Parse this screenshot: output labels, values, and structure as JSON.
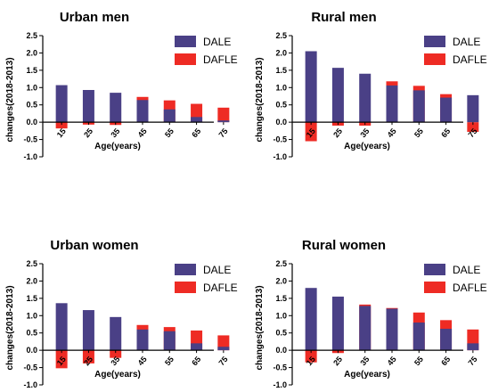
{
  "colors": {
    "dale": "#4a4086",
    "dafle": "#ee2b24",
    "axis": "#000000"
  },
  "chart_data": [
    {
      "type": "bar",
      "title": "Urban men",
      "xlabel": "Age(years)",
      "ylabel": "changes(2018-2013)",
      "ylim": [
        -1.0,
        2.5
      ],
      "yticks": [
        "-1.0",
        "-0.5",
        "0.0",
        "0.5",
        "1.0",
        "1.5",
        "2.0",
        "2.5"
      ],
      "categories": [
        "15",
        "25",
        "35",
        "45",
        "55",
        "65",
        "75"
      ],
      "legend_position": "top-right",
      "series": [
        {
          "name": "DALE",
          "values": [
            1.07,
            0.93,
            0.85,
            0.64,
            0.37,
            0.15,
            0.05
          ]
        },
        {
          "name": "DAFLE",
          "values": [
            -0.18,
            -0.07,
            -0.08,
            0.73,
            0.63,
            0.53,
            0.42
          ]
        }
      ]
    },
    {
      "type": "bar",
      "title": "Rural men",
      "xlabel": "Age(years)",
      "ylabel": "changes(2018-2013)",
      "ylim": [
        -1.0,
        2.5
      ],
      "yticks": [
        "-1.0",
        "-0.5",
        "0.0",
        "0.5",
        "1.0",
        "1.5",
        "2.0",
        "2.5"
      ],
      "categories": [
        "15",
        "25",
        "35",
        "45",
        "55",
        "65",
        "75"
      ],
      "legend_position": "top-right",
      "series": [
        {
          "name": "DALE",
          "values": [
            2.05,
            1.57,
            1.4,
            1.06,
            0.92,
            0.71,
            0.78
          ]
        },
        {
          "name": "DAFLE",
          "values": [
            -0.55,
            -0.1,
            -0.1,
            1.18,
            1.05,
            0.81,
            -0.28
          ]
        }
      ]
    },
    {
      "type": "bar",
      "title": "Urban women",
      "xlabel": "Age(years)",
      "ylabel": "changes(2018-2013)",
      "ylim": [
        -1.0,
        2.5
      ],
      "yticks": [
        "-1.0",
        "-0.5",
        "0.0",
        "0.5",
        "1.0",
        "1.5",
        "2.0",
        "2.5"
      ],
      "categories": [
        "15",
        "25",
        "35",
        "45",
        "55",
        "65",
        "75"
      ],
      "legend_position": "top-right",
      "series": [
        {
          "name": "DALE",
          "values": [
            1.36,
            1.16,
            0.96,
            0.6,
            0.55,
            0.2,
            0.1
          ]
        },
        {
          "name": "DAFLE",
          "values": [
            -0.52,
            -0.38,
            -0.22,
            0.73,
            0.67,
            0.57,
            0.43
          ]
        }
      ]
    },
    {
      "type": "bar",
      "title": "Rural women",
      "xlabel": "Age(years)",
      "ylabel": "changes(2018-2013)",
      "ylim": [
        -1.0,
        2.5
      ],
      "yticks": [
        "-1.0",
        "-0.5",
        "0.0",
        "0.5",
        "1.0",
        "1.5",
        "2.0",
        "2.5"
      ],
      "categories": [
        "15",
        "25",
        "35",
        "45",
        "55",
        "65",
        "75"
      ],
      "legend_position": "top-right",
      "series": [
        {
          "name": "DALE",
          "values": [
            1.8,
            1.55,
            1.28,
            1.2,
            0.8,
            0.62,
            0.2
          ]
        },
        {
          "name": "DAFLE",
          "values": [
            -0.35,
            -0.08,
            1.32,
            1.22,
            1.09,
            0.87,
            0.6
          ]
        }
      ]
    }
  ]
}
